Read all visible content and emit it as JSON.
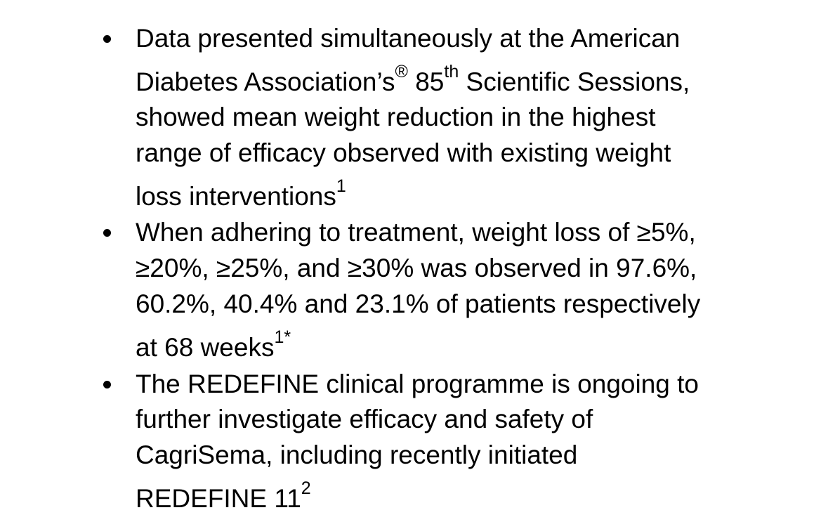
{
  "bullets": [
    {
      "lines": [
        {
          "text": "Data presented simultaneously at the American"
        },
        {
          "pre": "Diabetes Association’s",
          "sup1": "®",
          "mid": " 85",
          "sup2": "th",
          "post": " Scientific Sessions,"
        },
        {
          "text": "showed mean weight reduction in the highest"
        },
        {
          "text": "range of efficacy observed with existing weight"
        },
        {
          "text": "loss interventions",
          "sup": "1"
        }
      ]
    },
    {
      "lines": [
        {
          "text": "When adhering to treatment, weight loss of ≥5%,"
        },
        {
          "text": "≥20%, ≥25%, and ≥30% was observed in 97.6%,"
        },
        {
          "text": "60.2%, 40.4% and 23.1% of patients respectively"
        },
        {
          "text": "at 68 weeks",
          "sup": "1*"
        }
      ]
    },
    {
      "lines": [
        {
          "text": "The REDEFINE clinical programme is ongoing to"
        },
        {
          "text": "further investigate efficacy and safety of"
        },
        {
          "text": "CagriSema, including recently initiated"
        },
        {
          "text": "REDEFINE 11",
          "sup": "2"
        }
      ]
    }
  ]
}
